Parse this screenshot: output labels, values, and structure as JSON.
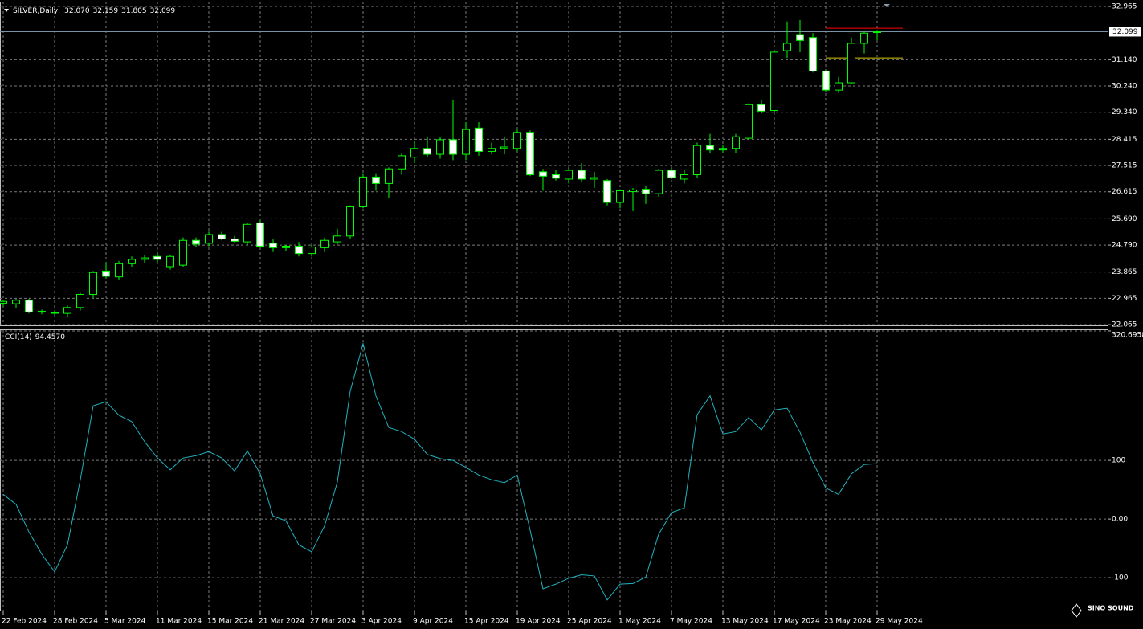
{
  "chart_data": [
    {
      "type": "candlestick",
      "title": "SILVER,Daily",
      "ohlc_text": [
        "32.070",
        "32.159",
        "31.805",
        "32.099"
      ],
      "categories": [
        "22 Feb 2024",
        null,
        null,
        null,
        "28 Feb 2024",
        null,
        null,
        null,
        "5 Mar 2024",
        null,
        null,
        null,
        "11 Mar 2024",
        null,
        null,
        null,
        "15 Mar 2024",
        null,
        null,
        null,
        "21 Mar 2024",
        null,
        null,
        null,
        "27 Mar 2024",
        null,
        null,
        null,
        "3 Apr 2024",
        null,
        null,
        null,
        "9 Apr 2024",
        null,
        null,
        null,
        "15 Apr 2024",
        null,
        null,
        null,
        "19 Apr 2024",
        null,
        null,
        null,
        "25 Apr 2024",
        null,
        null,
        null,
        "1 May 2024",
        null,
        null,
        null,
        "7 May 2024",
        null,
        null,
        null,
        "13 May 2024",
        null,
        null,
        null,
        "17 May 2024",
        null,
        null,
        null,
        "23 May 2024",
        null,
        null,
        null,
        "29 May 2024"
      ],
      "open": [
        22.8,
        22.78,
        22.9,
        22.5,
        22.48,
        22.45,
        22.65,
        23.1,
        23.9,
        23.7,
        24.15,
        24.3,
        24.4,
        24.05,
        24.1,
        24.95,
        24.85,
        25.15,
        25.0,
        24.9,
        25.55,
        24.85,
        24.7,
        24.75,
        24.5,
        24.7,
        24.9,
        25.1,
        26.1,
        27.12,
        26.9,
        27.4,
        27.8,
        28.1,
        27.9,
        28.4,
        27.9,
        28.8,
        28.0,
        28.1,
        28.1,
        28.65,
        27.3,
        27.2,
        27.05,
        27.35,
        27.05,
        27.0,
        26.25,
        26.62,
        26.7,
        26.55,
        27.35,
        27.05,
        27.2,
        28.2,
        28.05,
        28.1,
        28.45,
        29.6,
        29.4,
        31.45,
        32.0,
        31.9,
        30.75,
        30.1,
        30.35,
        31.7,
        32.07
      ],
      "high": [
        22.9,
        22.95,
        22.95,
        22.58,
        22.55,
        22.72,
        23.15,
        23.9,
        24.2,
        24.25,
        24.4,
        24.45,
        24.55,
        24.45,
        25.05,
        25.05,
        25.25,
        25.25,
        25.1,
        25.55,
        25.65,
        24.98,
        24.8,
        24.9,
        24.8,
        25.05,
        25.35,
        26.15,
        27.25,
        27.25,
        27.45,
        27.95,
        28.35,
        28.5,
        28.5,
        29.75,
        29.0,
        29.0,
        28.3,
        28.5,
        28.75,
        28.72,
        27.4,
        27.35,
        27.45,
        27.6,
        27.3,
        27.05,
        26.7,
        26.75,
        26.8,
        27.4,
        27.45,
        27.35,
        28.3,
        28.6,
        28.2,
        28.6,
        29.65,
        29.75,
        31.45,
        32.45,
        32.5,
        32.05,
        30.8,
        30.55,
        31.9,
        32.1,
        32.159
      ],
      "low": [
        22.7,
        22.65,
        22.45,
        22.42,
        22.4,
        22.33,
        22.55,
        22.98,
        23.65,
        23.6,
        24.05,
        24.18,
        24.2,
        23.95,
        24.05,
        24.72,
        24.75,
        24.95,
        24.88,
        24.8,
        24.7,
        24.55,
        24.58,
        24.4,
        24.4,
        24.55,
        24.82,
        25.0,
        26.05,
        26.65,
        26.4,
        27.2,
        27.6,
        27.8,
        27.75,
        27.7,
        27.7,
        27.85,
        27.9,
        27.9,
        28.0,
        27.15,
        26.65,
        27.0,
        26.9,
        26.95,
        26.75,
        26.15,
        26.05,
        25.95,
        26.2,
        26.45,
        27.05,
        26.9,
        27.1,
        27.95,
        27.95,
        27.95,
        28.4,
        29.3,
        29.35,
        31.2,
        31.4,
        30.7,
        30.05,
        30.0,
        30.3,
        31.35,
        31.805
      ],
      "close": [
        22.86,
        22.9,
        22.5,
        22.52,
        22.46,
        22.65,
        23.1,
        23.85,
        23.72,
        24.15,
        24.3,
        24.35,
        24.3,
        24.4,
        24.95,
        24.82,
        25.15,
        25.0,
        24.92,
        25.5,
        24.75,
        24.7,
        24.75,
        24.5,
        24.72,
        24.95,
        25.1,
        26.1,
        27.12,
        26.9,
        27.4,
        27.85,
        28.1,
        27.9,
        28.4,
        27.9,
        28.75,
        28.0,
        28.1,
        28.15,
        28.65,
        27.2,
        27.15,
        27.08,
        27.35,
        27.05,
        27.1,
        26.25,
        26.65,
        26.68,
        26.55,
        27.35,
        27.1,
        27.2,
        28.2,
        28.05,
        28.1,
        28.5,
        29.6,
        29.38,
        31.4,
        31.7,
        31.8,
        30.75,
        30.1,
        30.35,
        31.7,
        32.05,
        32.099
      ],
      "up_color": "#00ff00",
      "down_fill": "#ffffff",
      "ylim": [
        22.04,
        33.13
      ],
      "yticks": [
        32.965,
        {
          "value": 31.14,
          "label": "31.140"
        },
        {
          "value": 30.24,
          "label": "30.240"
        },
        {
          "value": 29.34,
          "label": "29.340"
        },
        28.415,
        27.515,
        26.615,
        {
          "value": 25.69,
          "label": "25.690"
        },
        {
          "value": 24.79,
          "label": "24.790"
        },
        23.865,
        22.965,
        22.065
      ],
      "current_price": {
        "value": 32.099,
        "label": "32.099"
      },
      "levels": [
        {
          "value": 32.22,
          "color": "#ff0000"
        },
        {
          "value": 31.2,
          "color": "#d8c800"
        }
      ],
      "grid": true
    },
    {
      "type": "line",
      "title": "CCI(14)",
      "value_text": "94.4570",
      "color": "#20b2c0",
      "values": [
        42,
        25,
        -22,
        -60,
        -90,
        -44,
        67,
        193,
        200,
        177,
        166,
        132,
        104,
        84,
        104,
        108,
        115,
        104,
        82,
        116,
        77,
        5,
        -3,
        -44,
        -56,
        -12,
        63,
        218,
        299,
        210,
        156,
        149,
        136,
        110,
        103,
        100,
        88,
        75,
        67,
        62,
        75,
        -19,
        -119,
        -111,
        -101,
        -95,
        -97,
        -138,
        -111,
        -110,
        -99,
        -26,
        11,
        19,
        178,
        210,
        145,
        149,
        173,
        152,
        186,
        189,
        148,
        97,
        53,
        42,
        77,
        93,
        94.457
      ],
      "ylim": [
        -156,
        322
      ],
      "yticks": [
        {
          "value": 320.6958,
          "label": "320.6958"
        },
        100,
        {
          "value": 0,
          "label": "0.00"
        },
        -100
      ],
      "grid": true
    }
  ],
  "watermark": "SINO SOUND"
}
